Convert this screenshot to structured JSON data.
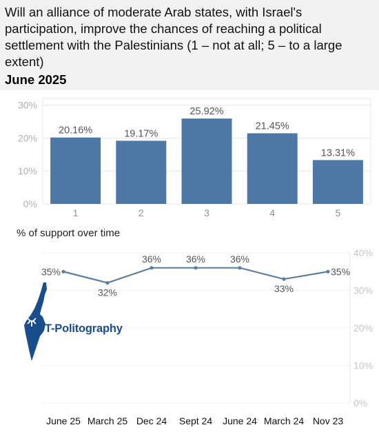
{
  "question": "Will an alliance of moderate Arab states, with Israel's participation, improve the chances of reaching a political settlement with the Palestinians (1 – not at all; 5 – to a large extent)",
  "date": "June 2025",
  "support_title": "% of support over time",
  "logo_text": "T-Politography",
  "colors": {
    "bar": "#4e79a7",
    "line": "#5b7fa0",
    "grid": "#e6e6e6"
  },
  "chart_data": [
    {
      "type": "bar",
      "categories": [
        "1",
        "2",
        "3",
        "4",
        "5"
      ],
      "values": [
        20.16,
        19.17,
        25.92,
        21.45,
        13.31
      ],
      "labels": [
        "20.16%",
        "19.17%",
        "25.92%",
        "21.45%",
        "13.31%"
      ],
      "yticks": [
        "0%",
        "10%",
        "20%",
        "30%"
      ],
      "ylim": [
        0,
        32
      ],
      "grid": true
    },
    {
      "type": "line",
      "title": "% of support over time",
      "categories": [
        "June 25",
        "March 25",
        "Dec 24",
        "Sept 24",
        "June 24",
        "March 24",
        "Nov 23"
      ],
      "values": [
        35,
        32,
        36,
        36,
        36,
        33,
        35
      ],
      "labels": [
        "35%",
        "32%",
        "36%",
        "36%",
        "36%",
        "33%",
        "35%"
      ],
      "yticks": [
        "0%",
        "10%",
        "20%",
        "30%",
        "40%"
      ],
      "ylim": [
        0,
        40
      ],
      "axis_side": "right",
      "grid": true
    }
  ]
}
